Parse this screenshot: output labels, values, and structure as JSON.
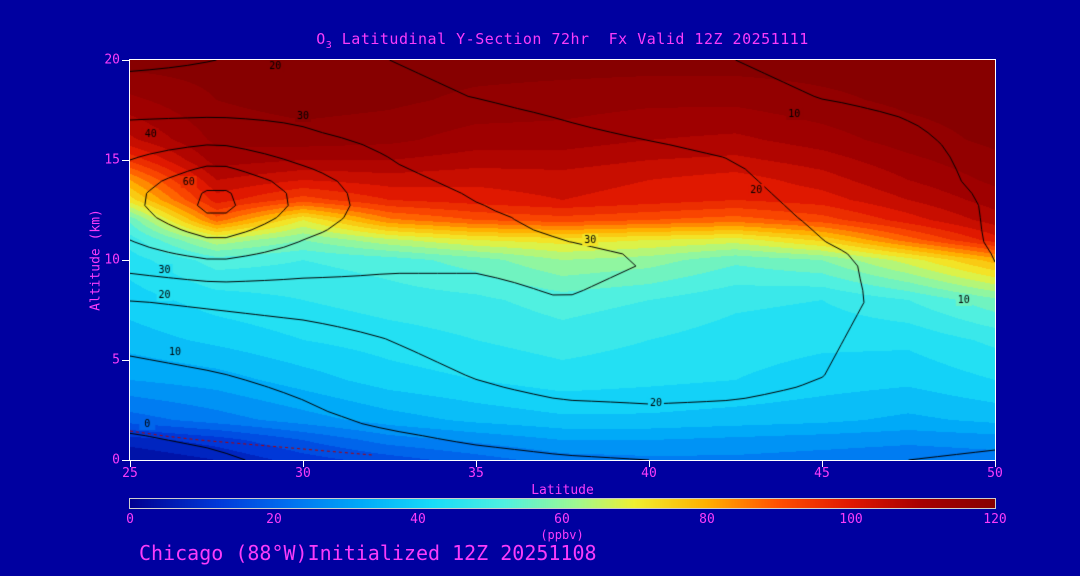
{
  "title": {
    "pre": "O",
    "sub": "3",
    "main": " Latitudinal Y-Section 72hr  Fx Valid 12Z 20251111"
  },
  "footer": {
    "text": "Chicago (88°W)Initialized 12Z 20251108"
  },
  "axes": {
    "x": {
      "label": "Latitude",
      "ticks": [
        "25",
        "30",
        "35",
        "40",
        "45",
        "50"
      ]
    },
    "y": {
      "label": "Altitude (km)",
      "ticks": [
        "20",
        "15",
        "10",
        "5",
        "0"
      ]
    }
  },
  "colorbar": {
    "unit": "(ppbv)",
    "ticks": [
      "0",
      "20",
      "40",
      "60",
      "80",
      "100",
      "120"
    ],
    "min": 0,
    "max": 120
  },
  "style": {
    "background": "#0000A0",
    "text": "#FA3CFA",
    "frame": "#FFFFFF",
    "contour_color": "#000000",
    "neg_contour_color": "#B40000",
    "colormap": [
      [
        0,
        "#000090"
      ],
      [
        12,
        "#0038D8"
      ],
      [
        22,
        "#0070F0"
      ],
      [
        32,
        "#00AAF8"
      ],
      [
        42,
        "#18DCF8"
      ],
      [
        52,
        "#50F0E0"
      ],
      [
        62,
        "#A0F890"
      ],
      [
        70,
        "#F0F030"
      ],
      [
        80,
        "#FFB000"
      ],
      [
        90,
        "#FF5000"
      ],
      [
        100,
        "#E01800"
      ],
      [
        110,
        "#A50000"
      ],
      [
        120,
        "#870000"
      ]
    ]
  },
  "chart_data": {
    "type": "heatmap",
    "title": "O3 Latitudinal Y-Section 72hr Fx Valid 12Z 20251111",
    "xlabel": "Latitude",
    "ylabel": "Altitude (km)",
    "units": "ppbv",
    "xlim": [
      25,
      50
    ],
    "ylim": [
      0,
      20
    ],
    "zlim": [
      0,
      120
    ],
    "legend_position": "bottom-colorbar",
    "lats": [
      25,
      27.5,
      30,
      32.5,
      35,
      37.5,
      40,
      42.5,
      45,
      47.5,
      50
    ],
    "alts": [
      0,
      1,
      2,
      4,
      6,
      8,
      10,
      11,
      12,
      13,
      14,
      15,
      16,
      18,
      20
    ],
    "ozone_ppbv": [
      [
        2,
        6,
        12,
        16,
        20,
        24,
        25,
        25,
        24,
        23,
        24
      ],
      [
        8,
        12,
        18,
        24,
        27,
        30,
        30,
        29,
        28,
        27,
        28
      ],
      [
        20,
        24,
        28,
        32,
        35,
        37,
        37,
        36,
        35,
        33,
        35
      ],
      [
        30,
        32,
        36,
        40,
        42,
        44,
        43,
        42,
        40,
        39,
        42
      ],
      [
        36,
        39,
        42,
        44,
        46,
        48,
        46,
        44,
        43,
        43,
        47
      ],
      [
        40,
        44,
        46,
        48,
        49,
        52,
        50,
        47,
        46,
        50,
        57
      ],
      [
        44,
        52,
        50,
        52,
        56,
        62,
        60,
        55,
        58,
        68,
        80
      ],
      [
        48,
        65,
        58,
        65,
        70,
        72,
        70,
        68,
        75,
        88,
        100
      ],
      [
        55,
        88,
        70,
        85,
        90,
        92,
        90,
        88,
        92,
        100,
        108
      ],
      [
        72,
        100,
        92,
        98,
        100,
        102,
        100,
        98,
        100,
        106,
        112
      ],
      [
        82,
        106,
        102,
        104,
        103,
        104,
        102,
        100,
        104,
        110,
        115
      ],
      [
        95,
        112,
        110,
        110,
        108,
        108,
        106,
        105,
        108,
        113,
        117
      ],
      [
        105,
        115,
        116,
        115,
        112,
        112,
        110,
        109,
        112,
        116,
        119
      ],
      [
        113,
        118,
        120,
        119,
        117,
        116,
        115,
        115,
        117,
        119,
        120
      ],
      [
        120,
        120,
        120,
        120,
        120,
        120,
        120,
        120,
        120,
        120,
        120
      ]
    ],
    "contour_levels": [
      0,
      10,
      20,
      30,
      40,
      50,
      60
    ],
    "contour_field": [
      [
        -3,
        -1,
        2,
        5,
        7,
        9,
        10,
        11,
        11,
        10,
        9
      ],
      [
        -1,
        1,
        4,
        8,
        11,
        13,
        14,
        15,
        14,
        12,
        11
      ],
      [
        2,
        4,
        8,
        12,
        15,
        17,
        18,
        18,
        17,
        14,
        12
      ],
      [
        7,
        9,
        12,
        16,
        20,
        23,
        23,
        22,
        20,
        16,
        13
      ],
      [
        12,
        14,
        16,
        20,
        24,
        26,
        26,
        24,
        21,
        17,
        12
      ],
      [
        20,
        22,
        24,
        26,
        28,
        30,
        28,
        26,
        22,
        18,
        11
      ],
      [
        35,
        40,
        35,
        32,
        31,
        32,
        30,
        27,
        22,
        17,
        10
      ],
      [
        40,
        50,
        40,
        33,
        31,
        30,
        28,
        25,
        20,
        16,
        9
      ],
      [
        45,
        60,
        45,
        34,
        31,
        29,
        26,
        23,
        19,
        15,
        9
      ],
      [
        48,
        65,
        48,
        34,
        30,
        27,
        25,
        22,
        18,
        14,
        9
      ],
      [
        45,
        58,
        45,
        32,
        28,
        25,
        23,
        21,
        17,
        13,
        8
      ],
      [
        40,
        48,
        38,
        30,
        26,
        24,
        22,
        20,
        16,
        12,
        8
      ],
      [
        35,
        38,
        32,
        28,
        25,
        22,
        20,
        18,
        13,
        11,
        8
      ],
      [
        25,
        24,
        26,
        22,
        20,
        18,
        15,
        12,
        10,
        9,
        7
      ],
      [
        18,
        20,
        22,
        20,
        18,
        15,
        12,
        10,
        8,
        8,
        6
      ]
    ],
    "contour_labels": [
      {
        "v": "20",
        "lat": 29.2,
        "alt": 19.7
      },
      {
        "v": "30",
        "lat": 30.0,
        "alt": 17.2
      },
      {
        "v": "40",
        "lat": 25.6,
        "alt": 16.3
      },
      {
        "v": "60",
        "lat": 26.7,
        "alt": 13.9
      },
      {
        "v": "10",
        "lat": 44.2,
        "alt": 17.3
      },
      {
        "v": "20",
        "lat": 43.1,
        "alt": 13.5
      },
      {
        "v": "30",
        "lat": 38.3,
        "alt": 11.0
      },
      {
        "v": "10",
        "lat": 49.1,
        "alt": 8.0
      },
      {
        "v": "30",
        "lat": 26.0,
        "alt": 9.5
      },
      {
        "v": "20",
        "lat": 26.0,
        "alt": 8.25
      },
      {
        "v": "10",
        "lat": 26.3,
        "alt": 5.4
      },
      {
        "v": "20",
        "lat": 40.2,
        "alt": 2.85
      },
      {
        "v": "0",
        "lat": 25.5,
        "alt": 1.8
      }
    ],
    "neg_contour": {
      "points": [
        [
          25,
          1.45
        ],
        [
          26,
          1.2
        ],
        [
          27,
          1.0
        ],
        [
          28,
          0.85
        ],
        [
          29,
          0.7
        ],
        [
          30,
          0.55
        ],
        [
          31,
          0.4
        ],
        [
          32,
          0.25
        ]
      ]
    }
  }
}
